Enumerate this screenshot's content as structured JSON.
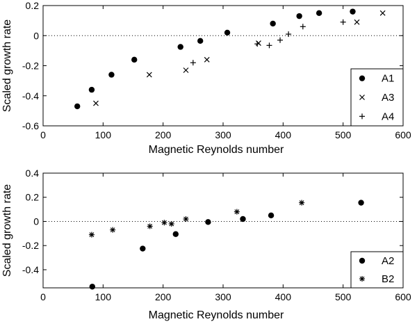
{
  "chart_data": [
    {
      "type": "scatter",
      "xlabel": "Magnetic Reynolds number",
      "ylabel": "Scaled growth rate",
      "xlim": [
        0,
        600
      ],
      "ylim": [
        -0.6,
        0.2
      ],
      "xticks": [
        "0",
        "100",
        "200",
        "300",
        "400",
        "500",
        "600"
      ],
      "yticks": [
        "-0.6",
        "-0.4",
        "-0.2",
        "0",
        "0.2"
      ],
      "reference_line": {
        "y": 0,
        "style": "dotted"
      },
      "legend_position": "bottom-right",
      "series": [
        {
          "name": "A1",
          "marker": "filled-circle",
          "x": [
            57,
            81,
            114,
            152,
            229,
            262,
            307,
            383,
            427,
            460,
            516
          ],
          "y": [
            -0.47,
            -0.36,
            -0.26,
            -0.16,
            -0.075,
            -0.035,
            0.02,
            0.08,
            0.13,
            0.15,
            0.16
          ]
        },
        {
          "name": "A3",
          "marker": "x-mark",
          "x": [
            88,
            177,
            238,
            273,
            359,
            523,
            566
          ],
          "y": [
            -0.45,
            -0.26,
            -0.23,
            -0.16,
            -0.05,
            0.09,
            0.15
          ]
        },
        {
          "name": "A4",
          "marker": "plus",
          "x": [
            250,
            357,
            377,
            395,
            409,
            433,
            500
          ],
          "y": [
            -0.18,
            -0.055,
            -0.065,
            -0.03,
            0.01,
            0.06,
            0.09
          ]
        }
      ]
    },
    {
      "type": "scatter",
      "xlabel": "Magnetic Reynolds number",
      "ylabel": "Scaled growth rate",
      "xlim": [
        0,
        600
      ],
      "ylim": [
        -0.55,
        0.4
      ],
      "xticks": [
        "0",
        "100",
        "200",
        "300",
        "400",
        "500",
        "600"
      ],
      "yticks": [
        "-0.4",
        "-0.2",
        "0",
        "0.2",
        "0.4"
      ],
      "reference_line": {
        "y": 0,
        "style": "dotted"
      },
      "legend_position": "bottom-right",
      "series": [
        {
          "name": "A2",
          "marker": "filled-circle",
          "x": [
            82,
            166,
            221,
            275,
            333,
            380,
            530
          ],
          "y": [
            -0.54,
            -0.225,
            -0.105,
            -0.005,
            0.02,
            0.05,
            0.155
          ]
        },
        {
          "name": "B2",
          "marker": "star",
          "x": [
            81,
            116,
            178,
            202,
            214,
            238,
            323,
            431
          ],
          "y": [
            -0.11,
            -0.07,
            -0.04,
            -0.01,
            -0.02,
            0.02,
            0.08,
            0.155
          ]
        }
      ]
    }
  ]
}
